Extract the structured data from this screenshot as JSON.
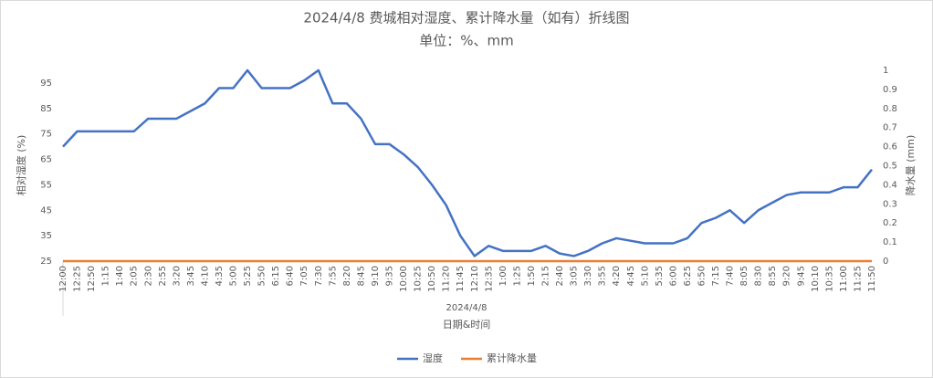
{
  "chart_data": {
    "type": "line",
    "title": "2024/4/8 费城相对湿度、累计降水量（如有）折线图",
    "subtitle": "单位：%、mm",
    "x_group_label": "2024/4/8",
    "x_label": "日期&时间",
    "y_label": "相对湿度 (%)",
    "y2_label": "降水量 (mm)",
    "categories": [
      "12:00",
      "12:25",
      "12:50",
      "1:15",
      "1:40",
      "2:05",
      "2:30",
      "2:55",
      "3:20",
      "3:45",
      "4:10",
      "4:35",
      "5:00",
      "5:25",
      "5:50",
      "6:15",
      "6:40",
      "7:05",
      "7:30",
      "7:55",
      "8:20",
      "8:45",
      "9:10",
      "9:35",
      "10:00",
      "10:25",
      "10:50",
      "11:20",
      "11:45",
      "12:10",
      "12:35",
      "1:00",
      "1:25",
      "1:50",
      "2:15",
      "2:40",
      "3:05",
      "3:30",
      "3:55",
      "4:20",
      "4:45",
      "5:10",
      "5:35",
      "6:00",
      "6:25",
      "6:50",
      "7:15",
      "7:40",
      "8:05",
      "8:30",
      "8:55",
      "9:20",
      "9:45",
      "10:10",
      "10:35",
      "11:00",
      "11:25",
      "11:50"
    ],
    "series": [
      {
        "name": "湿度",
        "color": "#4472c4",
        "values": [
          70,
          76,
          76,
          76,
          76,
          76,
          81,
          81,
          81,
          84,
          87,
          93,
          93,
          100,
          93,
          93,
          93,
          96,
          100,
          87,
          87,
          81,
          71,
          71,
          67,
          62,
          55,
          47,
          35,
          27,
          31,
          29,
          29,
          29,
          31,
          28,
          27,
          29,
          32,
          34,
          33,
          32,
          32,
          32,
          34,
          40,
          42,
          45,
          40,
          45,
          48,
          51,
          52,
          52,
          52,
          54,
          54,
          61
        ]
      },
      {
        "name": "累计降水量",
        "color": "#ed7d31",
        "axis": "y2",
        "values": [
          0,
          0,
          0,
          0,
          0,
          0,
          0,
          0,
          0,
          0,
          0,
          0,
          0,
          0,
          0,
          0,
          0,
          0,
          0,
          0,
          0,
          0,
          0,
          0,
          0,
          0,
          0,
          0,
          0,
          0,
          0,
          0,
          0,
          0,
          0,
          0,
          0,
          0,
          0,
          0,
          0,
          0,
          0,
          0,
          0,
          0,
          0,
          0,
          0,
          0,
          0,
          0,
          0,
          0,
          0,
          0,
          0,
          0
        ]
      }
    ],
    "ylim": [
      25,
      100
    ],
    "yticks": [
      25,
      35,
      45,
      55,
      65,
      75,
      85,
      95
    ],
    "y2lim": [
      0,
      1
    ],
    "y2ticks": [
      0,
      0.1,
      0.2,
      0.3,
      0.4,
      0.5,
      0.6,
      0.7,
      0.8,
      0.9,
      1
    ],
    "legend": "bottom"
  }
}
